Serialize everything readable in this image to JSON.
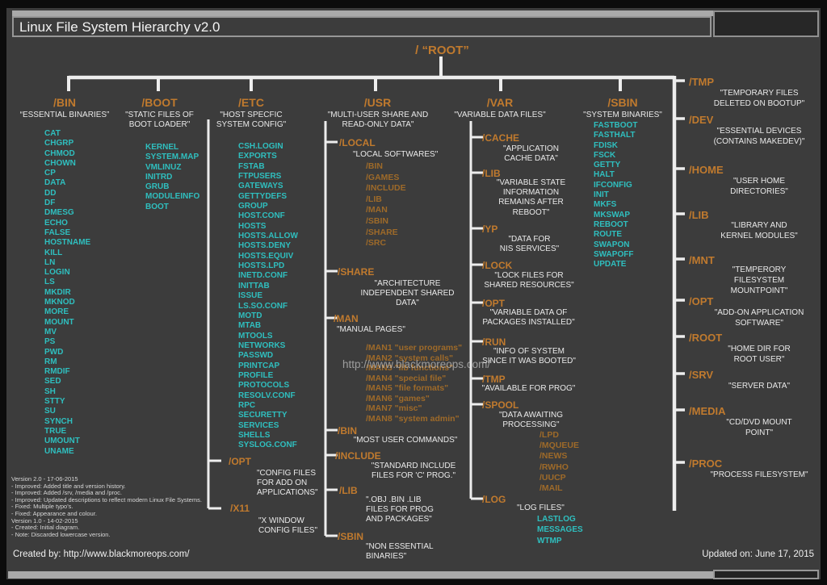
{
  "title": "Linux File System Hierarchy v2.0",
  "root_label": "/ “ROOT”",
  "watermark": "http://www.blackmoreops.com/",
  "colors": {
    "background": "#3c3c3c",
    "orange": "#c07a2e",
    "orange_muted": "#9e6a29",
    "cyan": "#2fbfbf",
    "text": "#e9e9e9",
    "line": "#ededed"
  },
  "columns": {
    "bin": {
      "name": "/BIN",
      "desc": "“ESSENTIAL BINARIES”",
      "files": [
        "CAT",
        "CHGRP",
        "CHMOD",
        "CHOWN",
        "CP",
        "DATA",
        "DD",
        "DF",
        "DMESG",
        "ECHO",
        "FALSE",
        "HOSTNAME",
        "KILL",
        "LN",
        "LOGIN",
        "LS",
        "MKDIR",
        "MKNOD",
        "MORE",
        "MOUNT",
        "MV",
        "PS",
        "PWD",
        "RM",
        "RMDIF",
        "SED",
        "SH",
        "STTY",
        "SU",
        "SYNCH",
        "TRUE",
        "UMOUNT",
        "UNAME"
      ]
    },
    "boot": {
      "name": "/BOOT",
      "desc": "\"STATIC FILES OF\nBOOT LOADER\"",
      "files": [
        "KERNEL",
        "SYSTEM.MAP",
        "VMLINUZ",
        "INITRD",
        "GRUB",
        "MODULEINFO",
        "BOOT"
      ]
    },
    "etc": {
      "name": "/ETC",
      "desc": "\"HOST SPECFIC\nSYSTEM CONFIG\"",
      "files": [
        "CSH.LOGIN",
        "EXPORTS",
        "FSTAB",
        "FTPUSERS",
        "GATEWAYS",
        "GETTYDEFS",
        "GROUP",
        "HOST.CONF",
        "HOSTS",
        "HOSTS.ALLOW",
        "HOSTS.DENY",
        "HOSTS.EQUIV",
        "HOSTS.LPD",
        "INETD.CONF",
        "INITTAB",
        "ISSUE",
        "LS.SO.CONF",
        "MOTD",
        "MTAB",
        "MTOOLS",
        "NETWORKS",
        "PASSWD",
        "PRINTCAP",
        "PROFILE",
        "PROTOCOLS",
        "RESOLV.CONF",
        "RPC",
        "SECURETTY",
        "SERVICES",
        "SHELLS",
        "SYSLOG.CONF"
      ],
      "opt": {
        "name": "/OPT",
        "desc": "\"CONFIG FILES\nFOR ADD ON\nAPPLICATIONS\""
      },
      "x11": {
        "name": "/X11",
        "desc": "\"X WINDOW\nCONFIG FILES\""
      }
    },
    "usr": {
      "name": "/USR",
      "desc": "\"MULTI-USER SHARE AND\nREAD-ONLY DATA\"",
      "local": {
        "name": "/LOCAL",
        "desc": "\"LOCAL SOFTWARES\"",
        "dirs": [
          "/BIN",
          "/GAMES",
          "/INCLUDE",
          "/LIB",
          "/MAN",
          "/SBIN",
          "/SHARE",
          "/SRC"
        ]
      },
      "share": {
        "name": "/SHARE",
        "desc": "\"ARCHITECTURE\nINDEPENDENT SHARED\nDATA\""
      },
      "man": {
        "name": "/MAN",
        "desc": "\"MANUAL PAGES\"",
        "pages": [
          "/MAN1 \"user programs\"",
          "/MAN2 \"system calls\"",
          "/MAN3 \"lib functions\"",
          "/MAN4 \"special file\"",
          "/MAN5 \"file formats\"",
          "/MAN6 \"games\"",
          "/MAN7 \"misc\"",
          "/MAN8 \"system admin\""
        ]
      },
      "bin": {
        "name": "/BIN",
        "desc": "\"MOST USER COMMANDS\""
      },
      "include": {
        "name": "/INCLUDE",
        "desc": "\"STANDARD INCLUDE\nFILES FOR 'C' PROG.\""
      },
      "lib": {
        "name": "/LIB",
        "desc": "\".OBJ .BIN .LIB\nFILES FOR PROG\nAND PACKAGES\""
      },
      "sbin": {
        "name": "/SBIN",
        "desc": "\"NON ESSENTIAL\nBINARIES\""
      }
    },
    "var": {
      "name": "/VAR",
      "desc": "\"VARIABLE DATA FILES\"",
      "cache": {
        "name": "/CACHE",
        "desc": "\"APPLICATION\nCACHE DATA\""
      },
      "lib": {
        "name": "/LIB",
        "desc": "\"VARIABLE STATE\nINFORMATION\nREMAINS AFTER\nREBOOT\""
      },
      "yp": {
        "name": "/YP",
        "desc": "\"DATA FOR\nNIS SERVICES\""
      },
      "lock": {
        "name": "/LOCK",
        "desc": "\"LOCK FILES FOR\nSHARED RESOURCES\""
      },
      "opt": {
        "name": "/OPT",
        "desc": "\"VARIABLE DATA OF\nPACKAGES INSTALLED\""
      },
      "run": {
        "name": "/RUN",
        "desc": "\"INFO OF SYSTEM\nSINCE IT WAS BOOTED\""
      },
      "tmp": {
        "name": "/TMP",
        "desc": "\"AVAILABLE FOR PROG\""
      },
      "spool": {
        "name": "/SPOOL",
        "desc": "\"DATA AWAITING\nPROCESSING\"",
        "dirs": [
          "/LPD",
          "/MQUEUE",
          "/NEWS",
          "/RWHO",
          "/UUCP",
          "/MAIL"
        ]
      },
      "log": {
        "name": "/LOG",
        "desc": "\"LOG FILES\"",
        "files": [
          "LASTLOG",
          "MESSAGES",
          "WTMP"
        ]
      }
    },
    "sbin": {
      "name": "/SBIN",
      "desc": "\"SYSTEM BINARIES\"",
      "files": [
        "FASTBOOT",
        "FASTHALT",
        "FDISK",
        "FSCK",
        "GETTY",
        "HALT",
        "IFCONFIG",
        "INIT",
        "MKFS",
        "MKSWAP",
        "REBOOT",
        "ROUTE",
        "SWAPON",
        "SWAPOFF",
        "UPDATE"
      ]
    }
  },
  "right": [
    {
      "name": "/TMP",
      "desc": "\"TEMPORARY FILES\nDELETED ON BOOTUP\""
    },
    {
      "name": "/DEV",
      "desc": "\"ESSENTIAL DEVICES\n(CONTAINS MAKEDEV)\""
    },
    {
      "name": "/HOME",
      "desc": "\"USER HOME\nDIRECTORIES\""
    },
    {
      "name": "/LIB",
      "desc": "\"LIBRARY AND\nKERNEL MODULES\""
    },
    {
      "name": "/MNT",
      "desc": "\"TEMPERORY\nFILESYSTEM\nMOUNTPOINT\""
    },
    {
      "name": "/OPT",
      "desc": "\"ADD-ON APPLICATION\nSOFTWARE\""
    },
    {
      "name": "/ROOT",
      "desc": "\"HOME DIR FOR\nROOT USER\""
    },
    {
      "name": "/SRV",
      "desc": "\"SERVER DATA\""
    },
    {
      "name": "/MEDIA",
      "desc": "\"CD/DVD MOUNT\nPOINT\""
    },
    {
      "name": "/PROC",
      "desc": "\"PROCESS FILESYSTEM\""
    }
  ],
  "version_notes": [
    "Version 2.0 - 17-06-2015",
    "- Improved: Added title and version history.",
    "- Improved: Added /srv, /media and /proc.",
    "- Improved: Updated descriptions to reflect modern Linux File Systems.",
    "- Fixed: Multiple typo's.",
    "- Fixed: Appearance and colour.",
    "Version 1.0 - 14-02-2015",
    "- Created: Initial diagram.",
    "- Note: Discarded lowercase version."
  ],
  "footer": {
    "created_by": "Created by: http://www.blackmoreops.com/",
    "updated_on": "Updated on: June 17, 2015"
  }
}
